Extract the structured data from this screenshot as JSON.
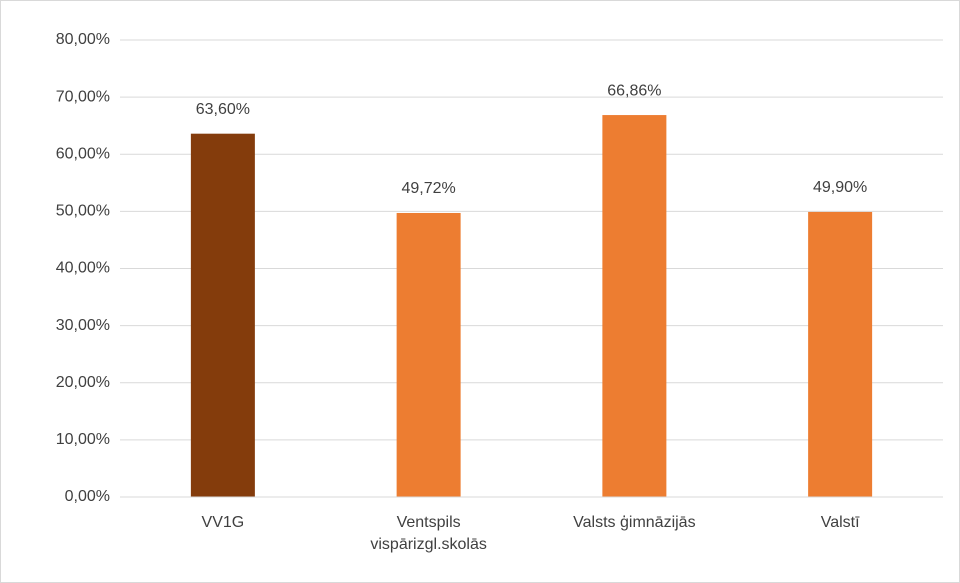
{
  "chart_data": {
    "type": "bar",
    "categories": [
      "VV1G",
      "Ventspils vispārizgl.skolās",
      "Valsts ģimnāzijās",
      "Valstī"
    ],
    "values": [
      63.6,
      49.72,
      66.86,
      49.9
    ],
    "value_labels": [
      "63,60%",
      "49,72%",
      "66,86%",
      "49,90%"
    ],
    "colors": [
      "#843c0c",
      "#ed7d31",
      "#ed7d31",
      "#ed7d31"
    ],
    "ylim": [
      0,
      80
    ],
    "yticks": [
      {
        "value": 0,
        "label": "0,00%"
      },
      {
        "value": 10,
        "label": "10,00%"
      },
      {
        "value": 20,
        "label": "20,00%"
      },
      {
        "value": 30,
        "label": "30,00%"
      },
      {
        "value": 40,
        "label": "40,00%"
      },
      {
        "value": 50,
        "label": "50,00%"
      },
      {
        "value": 60,
        "label": "60,00%"
      },
      {
        "value": 70,
        "label": "70,00%"
      },
      {
        "value": 80,
        "label": "80,00%"
      }
    ],
    "grid": true
  }
}
